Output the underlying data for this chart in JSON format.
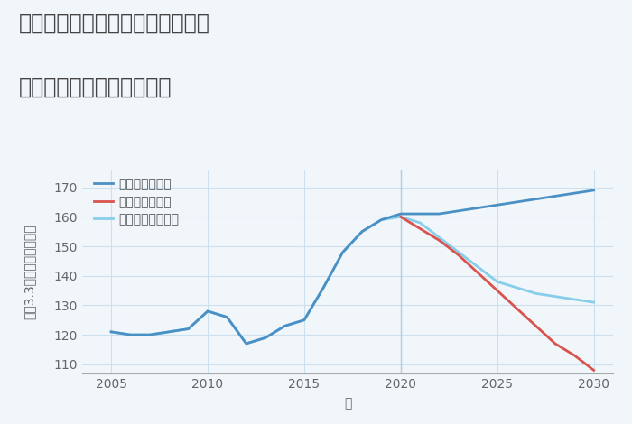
{
  "title_line1": "愛知県名古屋市名東区猪子石原の",
  "title_line2": "中古マンションの価格推移",
  "xlabel": "年",
  "ylabel_chars": [
    "平",
    "（",
    "3",
    ".",
    "3",
    "㎡",
    "）",
    "単",
    "価",
    "（",
    "万",
    "円",
    "）"
  ],
  "xlim": [
    2003.5,
    2031
  ],
  "ylim": [
    107,
    176
  ],
  "yticks": [
    110,
    120,
    130,
    140,
    150,
    160,
    170
  ],
  "xticks": [
    2005,
    2010,
    2015,
    2020,
    2025,
    2030
  ],
  "grid_color": "#cce0ee",
  "background_color": "#f0f6fa",
  "good_scenario": {
    "label": "グッドシナリオ",
    "color": "#4a90c4",
    "x": [
      2005,
      2006,
      2007,
      2008,
      2009,
      2010,
      2011,
      2012,
      2013,
      2014,
      2015,
      2016,
      2017,
      2018,
      2019,
      2020,
      2021,
      2022,
      2023,
      2024,
      2025,
      2026,
      2027,
      2028,
      2029,
      2030
    ],
    "y": [
      121,
      120,
      120,
      121,
      122,
      128,
      126,
      117,
      119,
      123,
      125,
      136,
      148,
      155,
      159,
      161,
      161,
      161,
      162,
      163,
      164,
      165,
      166,
      167,
      168,
      169
    ]
  },
  "bad_scenario": {
    "label": "バッドシナリオ",
    "color": "#d9534f",
    "x": [
      2020,
      2021,
      2022,
      2023,
      2024,
      2025,
      2026,
      2027,
      2028,
      2029,
      2030
    ],
    "y": [
      160,
      156,
      152,
      147,
      141,
      135,
      129,
      123,
      117,
      113,
      108
    ]
  },
  "normal_scenario": {
    "label": "ノーマルシナリオ",
    "color": "#87ceeb",
    "x": [
      2005,
      2006,
      2007,
      2008,
      2009,
      2010,
      2011,
      2012,
      2013,
      2014,
      2015,
      2016,
      2017,
      2018,
      2019,
      2020,
      2021,
      2022,
      2023,
      2024,
      2025,
      2026,
      2027,
      2028,
      2029,
      2030
    ],
    "y": [
      121,
      120,
      120,
      121,
      122,
      128,
      126,
      117,
      119,
      123,
      125,
      136,
      148,
      155,
      159,
      160,
      158,
      153,
      148,
      143,
      138,
      136,
      134,
      133,
      132,
      131
    ]
  },
  "vline_x": 2020,
  "vline_color": "#b0cfe0",
  "title_color": "#444444",
  "title_fontsize": 17,
  "axis_label_fontsize": 10,
  "tick_fontsize": 10,
  "legend_fontsize": 10
}
